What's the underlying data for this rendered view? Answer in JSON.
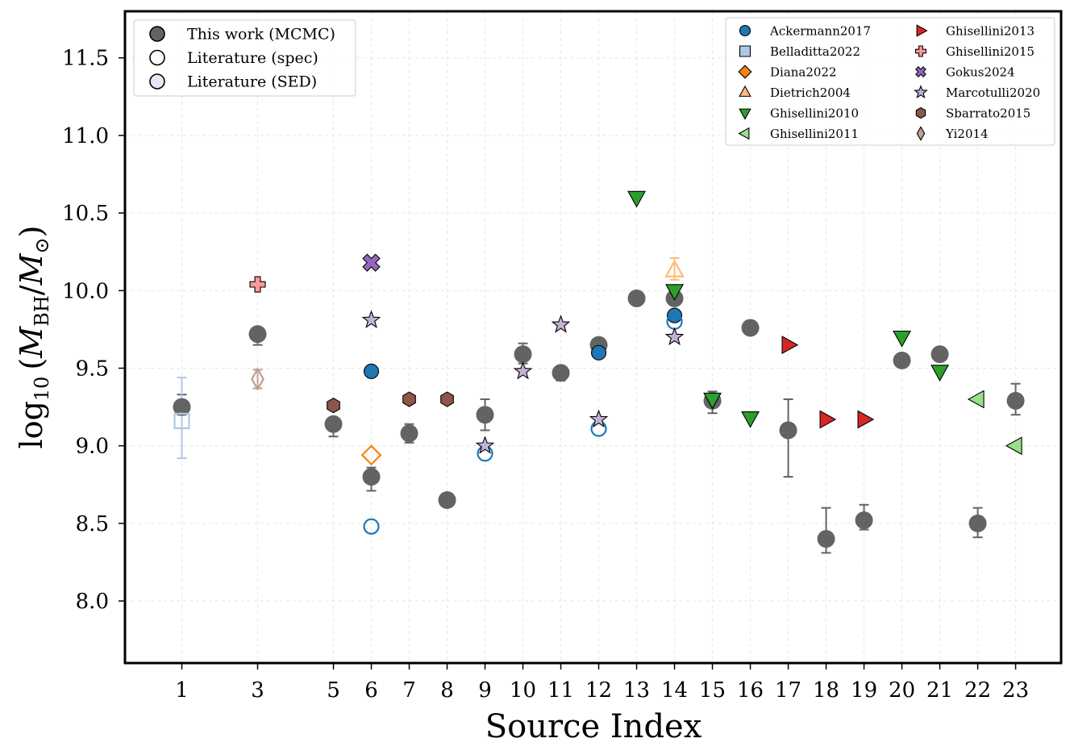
{
  "chart_data": {
    "type": "scatter",
    "xlabel": "Source Index",
    "ylabel": {
      "main": "log",
      "sub10": "10",
      "lparen": "(",
      "M1": "M",
      "sub1": "BH",
      "slash": "/",
      "M2": "M",
      "sub2": "⊙",
      "rparen": ")"
    },
    "xlim": [
      -0.5,
      24.2
    ],
    "ylim": [
      7.6,
      11.8
    ],
    "x_ticks": [
      1,
      3,
      5,
      6,
      7,
      8,
      9,
      10,
      11,
      12,
      13,
      14,
      15,
      16,
      17,
      18,
      19,
      20,
      21,
      22,
      23
    ],
    "y_ticks": [
      8.0,
      8.5,
      9.0,
      9.5,
      10.0,
      10.5,
      11.0,
      11.5
    ],
    "y_tick_labels": [
      "8.0",
      "8.5",
      "9.0",
      "9.5",
      "10.0",
      "10.5",
      "11.0",
      "11.5"
    ],
    "grid": true,
    "legend_main_location": "upper left",
    "legend_refs_location": "upper right",
    "mcmc": {
      "name": "This work (MCMC)",
      "color": "#636363",
      "points": [
        {
          "x": 1,
          "y": 9.25,
          "lo": 9.2,
          "hi": 9.33
        },
        {
          "x": 3,
          "y": 9.72,
          "lo": 9.65,
          "hi": 9.76
        },
        {
          "x": 5,
          "y": 9.14,
          "lo": 9.06,
          "hi": 9.18
        },
        {
          "x": 6,
          "y": 8.8,
          "lo": 8.71,
          "hi": 8.86
        },
        {
          "x": 7,
          "y": 9.08,
          "lo": 9.02,
          "hi": 9.14
        },
        {
          "x": 8,
          "y": 8.65,
          "lo": null,
          "hi": null
        },
        {
          "x": 9,
          "y": 9.2,
          "lo": 9.1,
          "hi": 9.3
        },
        {
          "x": 10,
          "y": 9.59,
          "lo": 9.53,
          "hi": 9.66
        },
        {
          "x": 11,
          "y": 9.47,
          "lo": 9.42,
          "hi": 9.51
        },
        {
          "x": 12,
          "y": 9.65,
          "lo": null,
          "hi": null
        },
        {
          "x": 13,
          "y": 9.95,
          "lo": null,
          "hi": null
        },
        {
          "x": 14,
          "y": 9.95,
          "lo": null,
          "hi": null
        },
        {
          "x": 15,
          "y": 9.29,
          "lo": 9.21,
          "hi": 9.35
        },
        {
          "x": 16,
          "y": 9.76,
          "lo": null,
          "hi": null
        },
        {
          "x": 17,
          "y": 9.1,
          "lo": 8.8,
          "hi": 9.3
        },
        {
          "x": 18,
          "y": 8.4,
          "lo": 8.31,
          "hi": 8.6
        },
        {
          "x": 19,
          "y": 8.52,
          "lo": 8.46,
          "hi": 8.62
        },
        {
          "x": 20,
          "y": 9.55,
          "lo": null,
          "hi": null
        },
        {
          "x": 21,
          "y": 9.59,
          "lo": null,
          "hi": null
        },
        {
          "x": 22,
          "y": 8.5,
          "lo": 8.41,
          "hi": 8.6
        },
        {
          "x": 23,
          "y": 9.29,
          "lo": 9.2,
          "hi": 9.4
        }
      ]
    },
    "references": [
      {
        "name": "Ackermann2017",
        "marker": "circle",
        "color": "#1f77b4",
        "points": [
          {
            "x": 6,
            "y": 9.48,
            "style": "filled"
          },
          {
            "x": 6,
            "y": 8.48,
            "style": "open"
          },
          {
            "x": 9,
            "y": 8.95,
            "style": "open"
          },
          {
            "x": 12,
            "y": 9.6,
            "style": "filled"
          },
          {
            "x": 12,
            "y": 9.11,
            "style": "open"
          },
          {
            "x": 14,
            "y": 9.84,
            "style": "filled"
          },
          {
            "x": 14,
            "y": 9.8,
            "style": "open"
          }
        ]
      },
      {
        "name": "Belladitta2022",
        "marker": "square",
        "color": "#aec7e8",
        "points": [
          {
            "x": 1,
            "y": 9.16,
            "style": "open",
            "lo": 8.92,
            "hi": 9.44
          }
        ]
      },
      {
        "name": "Diana2022",
        "marker": "diamond",
        "color": "#ff7f0e",
        "points": [
          {
            "x": 6,
            "y": 8.94,
            "style": "open"
          }
        ]
      },
      {
        "name": "Dietrich2004",
        "marker": "triangle-up",
        "color": "#ffbb78",
        "points": [
          {
            "x": 14,
            "y": 10.13,
            "style": "open",
            "lo": 10.07,
            "hi": 10.21
          }
        ]
      },
      {
        "name": "Ghisellini2010",
        "marker": "triangle-down",
        "color": "#2ca02c",
        "points": [
          {
            "x": 13,
            "y": 10.6,
            "style": "filled"
          },
          {
            "x": 14,
            "y": 10.0,
            "style": "filled"
          },
          {
            "x": 15,
            "y": 9.3,
            "style": "filled"
          },
          {
            "x": 16,
            "y": 9.18,
            "style": "filled"
          },
          {
            "x": 20,
            "y": 9.7,
            "style": "filled"
          },
          {
            "x": 21,
            "y": 9.48,
            "style": "filled"
          }
        ]
      },
      {
        "name": "Ghisellini2011",
        "marker": "triangle-left",
        "color": "#98df8a",
        "points": [
          {
            "x": 22,
            "y": 9.3,
            "style": "filled"
          },
          {
            "x": 23,
            "y": 9.0,
            "style": "filled"
          }
        ]
      },
      {
        "name": "Ghisellini2013",
        "marker": "triangle-right",
        "color": "#d62728",
        "points": [
          {
            "x": 17,
            "y": 9.65,
            "style": "filled"
          },
          {
            "x": 18,
            "y": 9.17,
            "style": "filled"
          },
          {
            "x": 19,
            "y": 9.17,
            "style": "filled"
          }
        ]
      },
      {
        "name": "Ghisellini2015",
        "marker": "plus",
        "color": "#ff9896",
        "points": [
          {
            "x": 3,
            "y": 10.04,
            "style": "filled"
          }
        ]
      },
      {
        "name": "Gokus2024",
        "marker": "x",
        "color": "#9467bd",
        "points": [
          {
            "x": 6,
            "y": 10.18,
            "style": "filled"
          }
        ]
      },
      {
        "name": "Marcotulli2020",
        "marker": "star",
        "color": "#c5b0d5",
        "points": [
          {
            "x": 6,
            "y": 9.81,
            "style": "filled"
          },
          {
            "x": 9,
            "y": 9.0,
            "style": "filled"
          },
          {
            "x": 10,
            "y": 9.48,
            "style": "filled"
          },
          {
            "x": 11,
            "y": 9.78,
            "style": "filled"
          },
          {
            "x": 12,
            "y": 9.17,
            "style": "filled"
          },
          {
            "x": 14,
            "y": 9.7,
            "style": "filled"
          }
        ]
      },
      {
        "name": "Sbarrato2015",
        "marker": "hexagon",
        "color": "#8c564b",
        "points": [
          {
            "x": 5,
            "y": 9.26,
            "style": "filled"
          },
          {
            "x": 7,
            "y": 9.3,
            "style": "filled"
          },
          {
            "x": 8,
            "y": 9.3,
            "style": "filled"
          }
        ]
      },
      {
        "name": "Yi2014",
        "marker": "thin-diamond",
        "color": "#c49c94",
        "points": [
          {
            "x": 3,
            "y": 9.43,
            "style": "open",
            "lo": 9.37,
            "hi": 9.49
          }
        ]
      }
    ],
    "legend_main": [
      {
        "label": "This work (MCMC)",
        "style": "mcmc",
        "color": "#636363"
      },
      {
        "label": "Literature (spec)",
        "style": "open",
        "color": "#ffffff"
      },
      {
        "label": "Literature (SED)",
        "style": "filled",
        "color": "#e6e6f5"
      }
    ]
  }
}
